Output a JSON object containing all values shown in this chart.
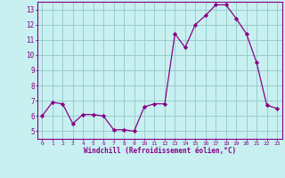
{
  "x": [
    0,
    1,
    2,
    3,
    4,
    5,
    6,
    7,
    8,
    9,
    10,
    11,
    12,
    13,
    14,
    15,
    16,
    17,
    18,
    19,
    20,
    21,
    22,
    23
  ],
  "y": [
    6.0,
    6.9,
    6.8,
    5.5,
    6.1,
    6.1,
    6.0,
    5.1,
    5.1,
    5.0,
    6.6,
    6.8,
    6.8,
    11.4,
    10.5,
    12.0,
    12.6,
    13.3,
    13.3,
    12.4,
    11.4,
    9.5,
    6.7,
    6.5
  ],
  "line_color": "#880088",
  "marker": "D",
  "marker_size": 2.2,
  "bg_color": "#c8f0f0",
  "grid_color": "#99cccc",
  "xlabel": "Windchill (Refroidissement éolien,°C)",
  "xlabel_color": "#880088",
  "tick_color": "#880088",
  "ylim": [
    4.5,
    13.5
  ],
  "xlim": [
    -0.5,
    23.5
  ],
  "yticks": [
    5,
    6,
    7,
    8,
    9,
    10,
    11,
    12,
    13
  ],
  "xticks": [
    0,
    1,
    2,
    3,
    4,
    5,
    6,
    7,
    8,
    9,
    10,
    11,
    12,
    13,
    14,
    15,
    16,
    17,
    18,
    19,
    20,
    21,
    22,
    23
  ],
  "spine_color": "#880088"
}
